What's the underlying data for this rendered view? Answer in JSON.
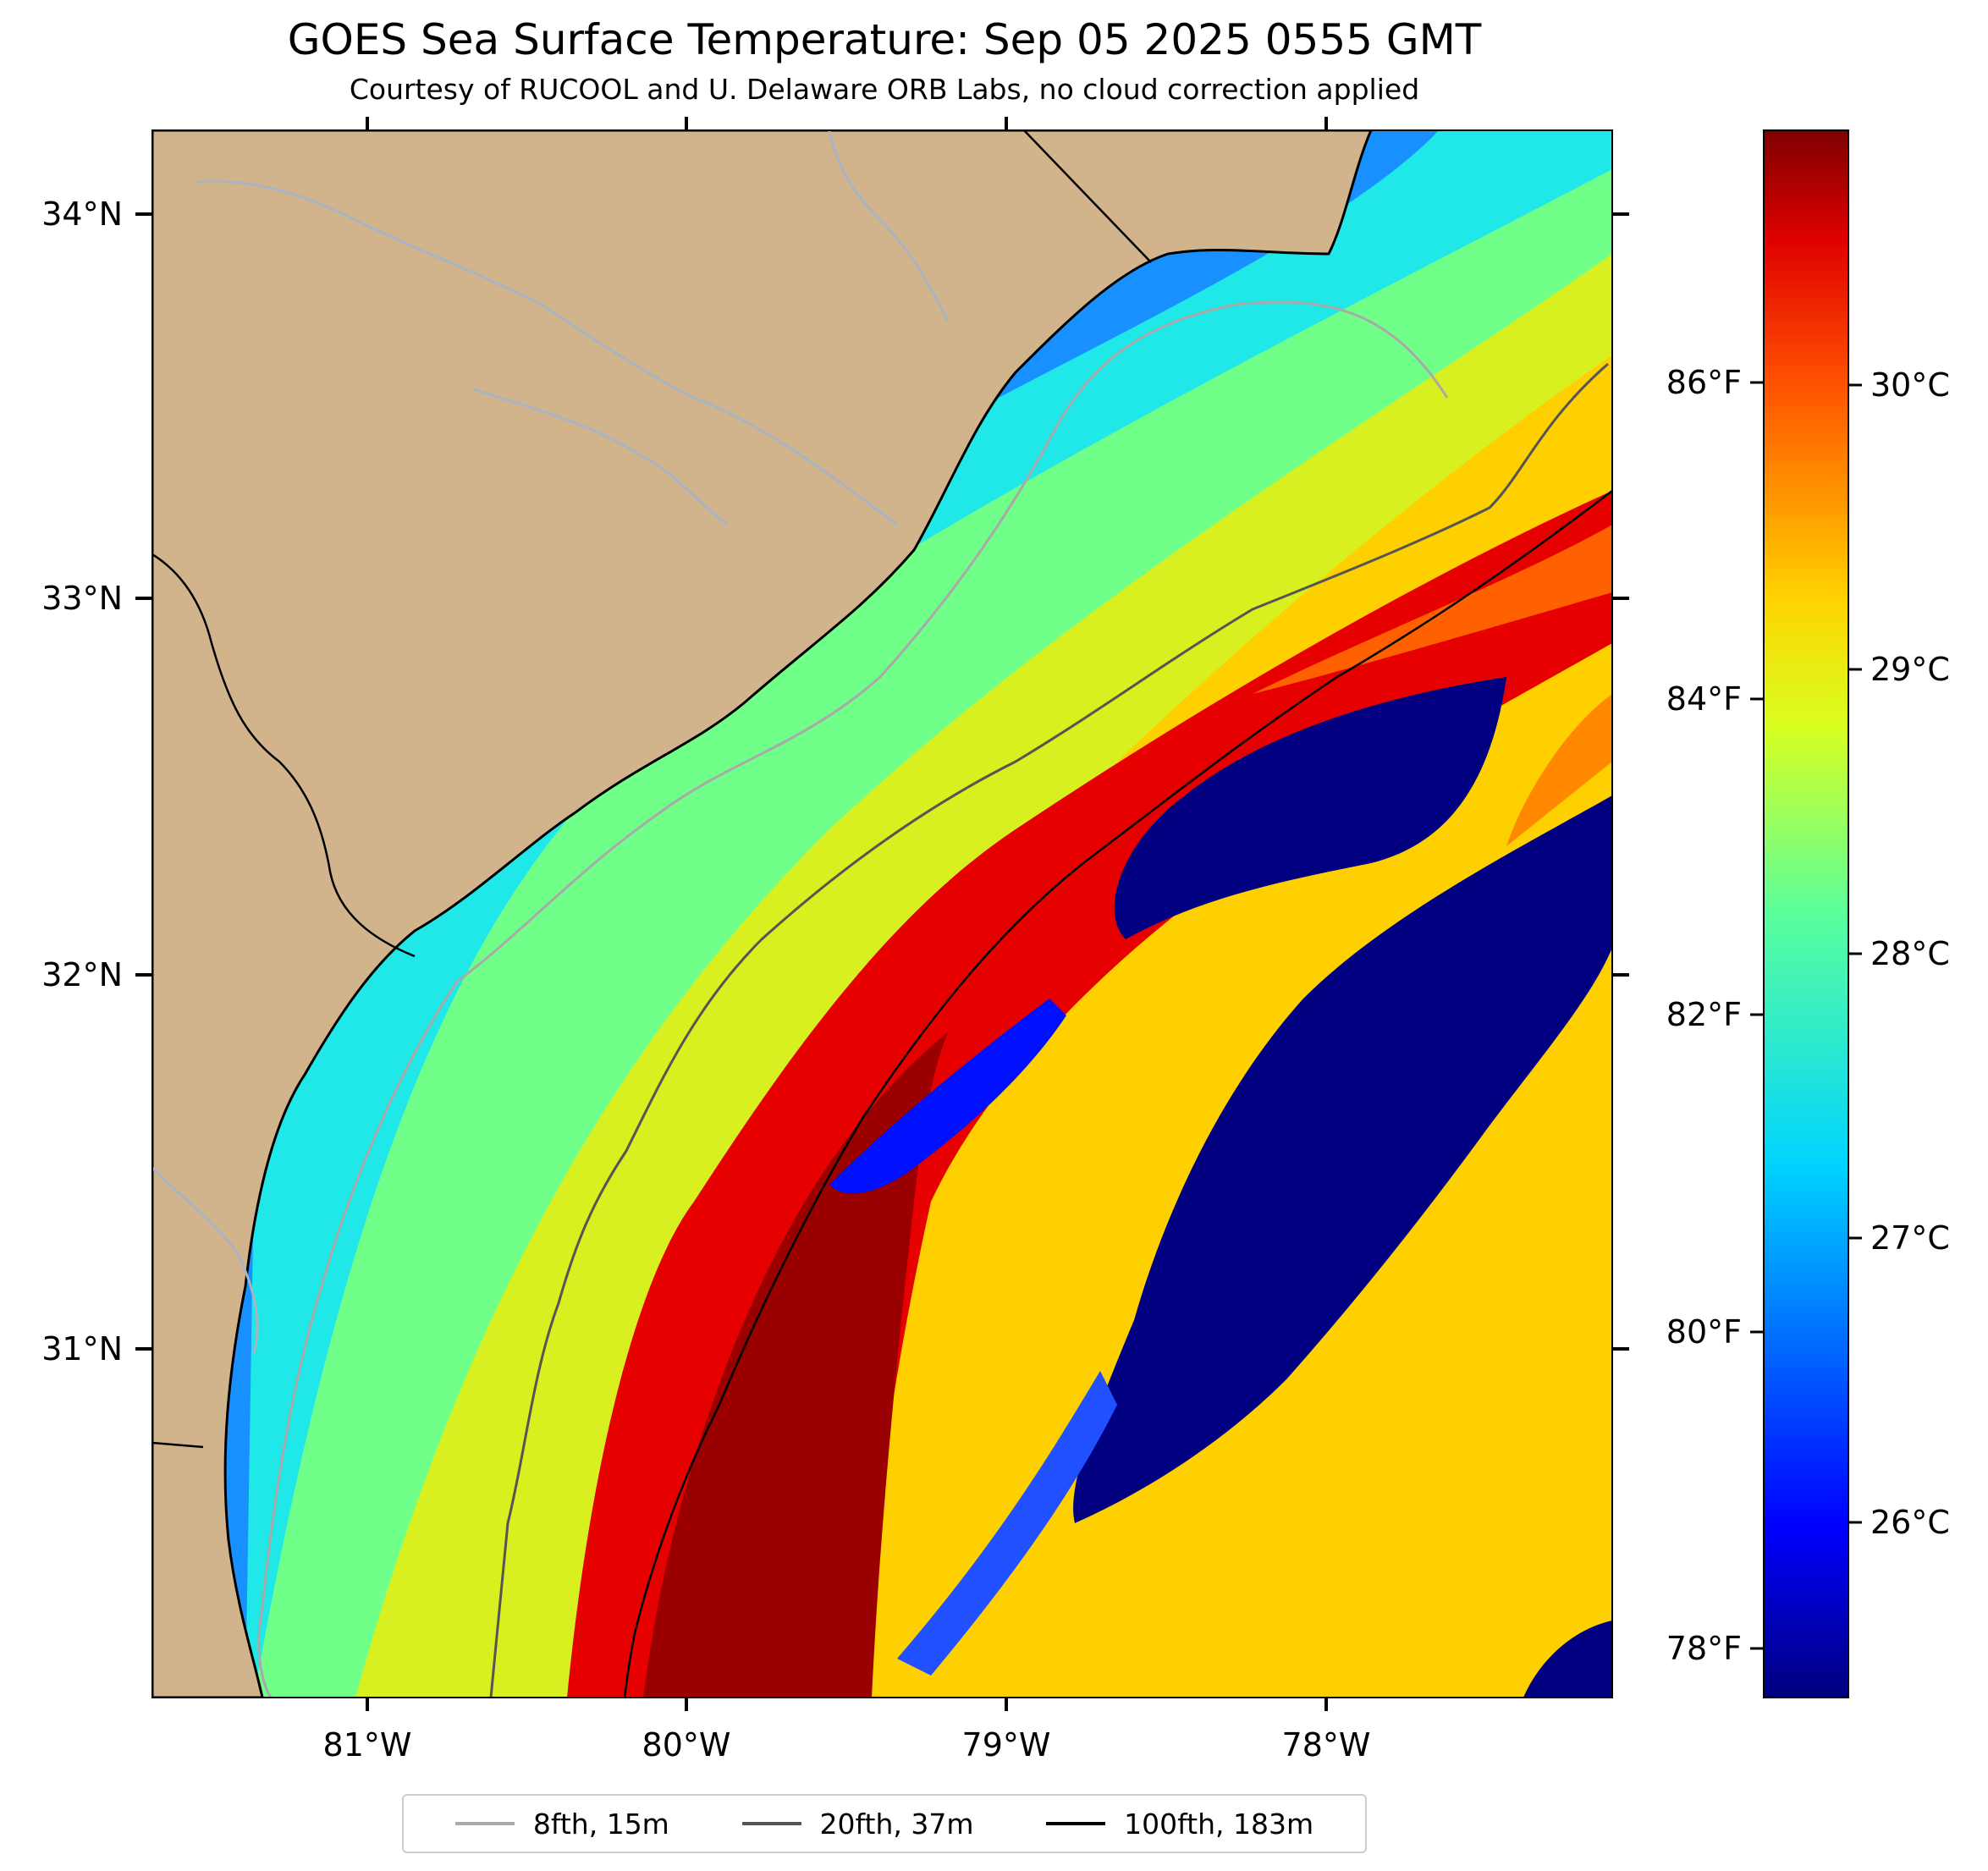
{
  "header": {
    "title": "GOES Sea Surface Temperature: Sep 05 2025 0555 GMT",
    "subtitle": "Courtesy of RUCOOL and U. Delaware ORB Labs, no cloud correction applied"
  },
  "map": {
    "longitude_labels": [
      "81°W",
      "80°W",
      "79°W",
      "78°W"
    ],
    "latitude_labels": [
      "34°N",
      "33°N",
      "32°N",
      "31°N"
    ],
    "colors": {
      "land": "#d2b48c",
      "coastline": "#000000",
      "river": "#a8b4c4",
      "state_border": "#000000"
    }
  },
  "colorbar": {
    "celsius_labels": [
      "30°C",
      "29°C",
      "28°C",
      "27°C",
      "26°C"
    ],
    "fahrenheit_labels": [
      "86°F",
      "84°F",
      "82°F",
      "80°F",
      "78°F"
    ],
    "colormap": "jet",
    "colors": [
      "#00007f",
      "#0000ff",
      "#0080ff",
      "#00ffff",
      "#80ff80",
      "#ffff00",
      "#ff8000",
      "#ff0000",
      "#7f0000"
    ]
  },
  "legend": {
    "items": [
      {
        "label": "8fth, 15m",
        "color": "#a9a9a9"
      },
      {
        "label": "20fth, 37m",
        "color": "#555555"
      },
      {
        "label": "100fth, 183m",
        "color": "#000000"
      }
    ]
  }
}
